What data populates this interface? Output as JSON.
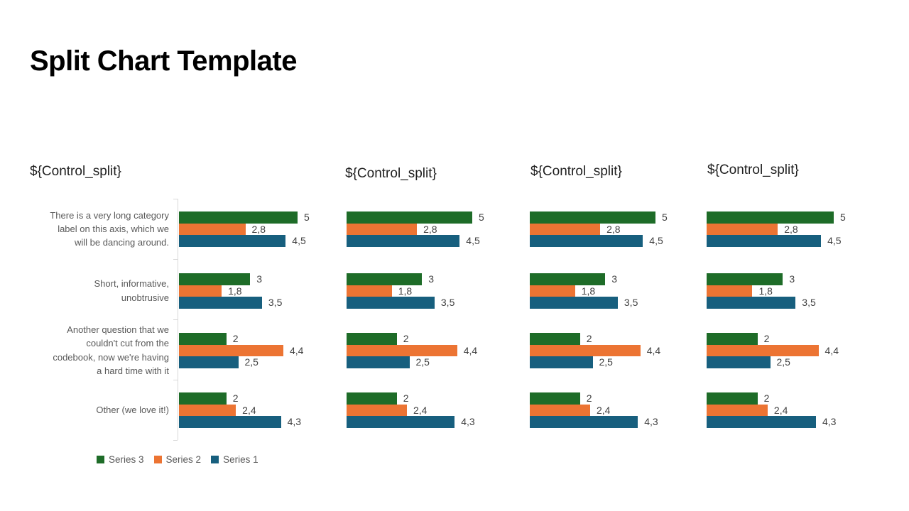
{
  "slide": {
    "title": "Split Chart Template"
  },
  "chart_data": {
    "type": "bar",
    "orientation": "horizontal",
    "small_multiples": 4,
    "panel_titles": [
      "${Control_split}",
      "${Control_split}",
      "${Control_split}",
      "${Control_split}"
    ],
    "categories": [
      "There is a very long category\nlabel on this axis, which we\nwill be dancing around.",
      "Short, informative,\nunobtrusive",
      "Another question that we\ncouldn't cut from the\ncodebook, now we're having\na hard time with it",
      "Other (we love it!)"
    ],
    "series": [
      {
        "name": "Series 3",
        "color": "#1E6C28",
        "values": [
          5,
          3,
          2,
          2
        ],
        "value_labels": [
          "5",
          "3",
          "2",
          "2"
        ]
      },
      {
        "name": "Series 2",
        "color": "#EC7433",
        "values": [
          2.8,
          1.8,
          4.4,
          2.4
        ],
        "value_labels": [
          "2,8",
          "1,8",
          "4,4",
          "2,4"
        ]
      },
      {
        "name": "Series 1",
        "color": "#175F7E",
        "values": [
          4.5,
          3.5,
          2.5,
          4.3
        ],
        "value_labels": [
          "4,5",
          "3,5",
          "2,5",
          "4,3"
        ]
      }
    ],
    "xmax": 5,
    "grid": false,
    "axis_line_color": "#D9D9D9",
    "value_label_color": "#404040",
    "category_label_color": "#595959",
    "legend": {
      "position": "bottom-left",
      "entries": [
        {
          "label": "Series 3",
          "color": "#1E6C28"
        },
        {
          "label": "Series 2",
          "color": "#EC7433"
        },
        {
          "label": "Series 1",
          "color": "#175F7E"
        }
      ]
    }
  }
}
